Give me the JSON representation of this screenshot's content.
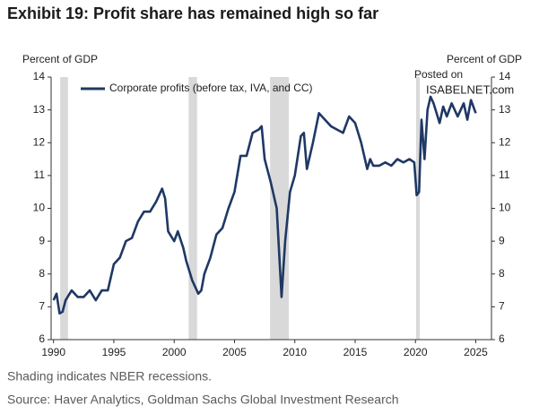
{
  "chart_data": {
    "type": "line",
    "title": "Exhibit 19: Profit share has remained high so far",
    "y_label": "Percent of GDP",
    "y2_label": "Percent of GDP",
    "watermark": [
      "Posted on",
      "ISABELNET.com"
    ],
    "notes": [
      "Shading indicates NBER recessions.",
      "Source: Haver Analytics, Goldman Sachs Global Investment Research"
    ],
    "x": [
      1990,
      1990.25,
      1990.5,
      1990.75,
      1991,
      1991.5,
      1992,
      1992.5,
      1993,
      1993.5,
      1994,
      1994.5,
      1995,
      1995.5,
      1996,
      1996.5,
      1997,
      1997.5,
      1998,
      1998.5,
      1999,
      1999.25,
      1999.5,
      2000,
      2000.3,
      2000.75,
      2001,
      2001.5,
      2002,
      2002.25,
      2002.5,
      2003,
      2003.5,
      2004,
      2004.5,
      2005,
      2005.5,
      2006,
      2006.5,
      2007,
      2007.25,
      2007.5,
      2008,
      2008.5,
      2008.9,
      2009.2,
      2009.6,
      2010,
      2010.5,
      2010.75,
      2011,
      2011.5,
      2012,
      2012.5,
      2013,
      2013.5,
      2014,
      2014.5,
      2015,
      2015.5,
      2016,
      2016.25,
      2016.5,
      2017,
      2017.5,
      2018,
      2018.5,
      2019,
      2019.5,
      2019.9,
      2020.1,
      2020.3,
      2020.5,
      2020.75,
      2021,
      2021.25,
      2021.5,
      2022,
      2022.3,
      2022.6,
      2023,
      2023.5,
      2024,
      2024.3,
      2024.6,
      2025
    ],
    "series": [
      {
        "name": "Corporate profits (before tax, IVA, and CC)",
        "color": "#1f3864",
        "values": [
          7.2,
          7.4,
          6.8,
          6.85,
          7.2,
          7.5,
          7.3,
          7.3,
          7.5,
          7.2,
          7.5,
          7.5,
          8.3,
          8.5,
          9.0,
          9.1,
          9.6,
          9.9,
          9.9,
          10.2,
          10.6,
          10.3,
          9.3,
          9.0,
          9.3,
          8.8,
          8.4,
          7.8,
          7.4,
          7.5,
          8.0,
          8.5,
          9.2,
          9.4,
          10.0,
          10.5,
          11.6,
          11.6,
          12.3,
          12.4,
          12.5,
          11.5,
          10.8,
          10.0,
          7.3,
          9.0,
          10.5,
          11.0,
          12.2,
          12.3,
          11.2,
          12.0,
          12.9,
          12.7,
          12.5,
          12.4,
          12.3,
          12.8,
          12.6,
          12.0,
          11.2,
          11.5,
          11.3,
          11.3,
          11.4,
          11.3,
          11.5,
          11.4,
          11.5,
          11.4,
          10.4,
          10.5,
          12.7,
          11.5,
          13.0,
          13.4,
          13.2,
          12.6,
          13.1,
          12.8,
          13.2,
          12.8,
          13.2,
          12.7,
          13.3,
          12.9
        ]
      }
    ],
    "recessions": [
      [
        1990.55,
        1991.2
      ],
      [
        2001.2,
        2001.9
      ],
      [
        2007.95,
        2009.5
      ],
      [
        2020.05,
        2020.35
      ]
    ],
    "recession_color": "#d9d9d9",
    "xlim": [
      1989.8,
      2026.3
    ],
    "xticks": [
      1990,
      1995,
      2000,
      2005,
      2010,
      2015,
      2020,
      2025
    ],
    "ylim": [
      6,
      14
    ],
    "yticks": [
      6,
      7,
      8,
      9,
      10,
      11,
      12,
      13,
      14
    ],
    "y2lim": [
      6,
      14
    ],
    "y2ticks": [
      6,
      7,
      8,
      9,
      10,
      11,
      12,
      13,
      14
    ],
    "grid": false
  }
}
